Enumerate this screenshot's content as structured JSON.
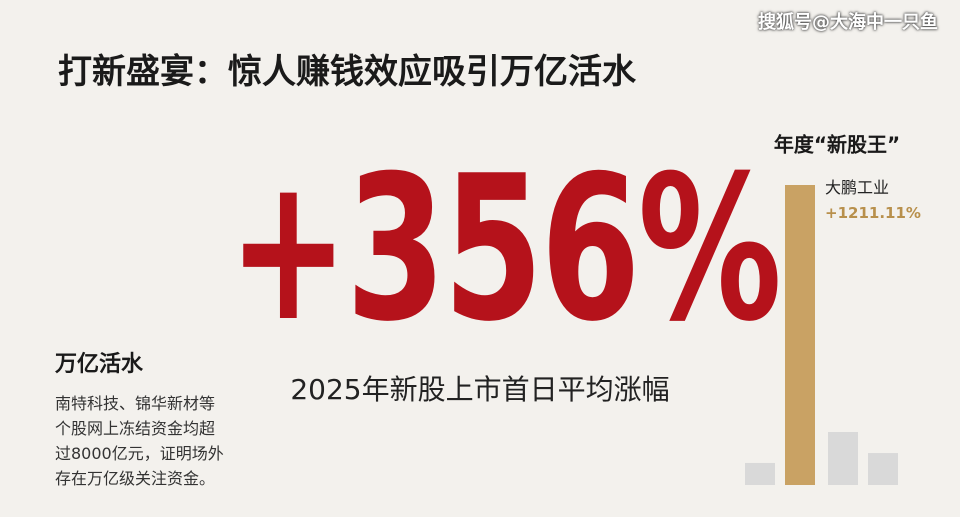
{
  "header": {
    "watermark": "搜狐号@大海中一只鱼",
    "title": "打新盛宴：惊人赚钱效应吸引万亿活水"
  },
  "headline": {
    "value": "+356%",
    "caption": "2025年新股上市首日平均涨幅"
  },
  "side": {
    "title": "万亿活水",
    "lines": [
      "南特科技、锦华新材等",
      "个股网上冻结资金均超",
      "过8000亿元，证明场外",
      "存在万亿级关注资金。"
    ]
  },
  "chart_data": {
    "type": "bar",
    "title": "年度“新股王”",
    "categories": [
      null,
      "大鹏工业",
      null,
      null
    ],
    "values": [
      89,
      1211.11,
      214,
      129
    ],
    "value_labels": [
      null,
      "+1211.11%",
      null,
      null
    ],
    "colors": [
      "#d9d9d9",
      "#c9a264",
      "#d9d9d9",
      "#d9d9d9"
    ]
  }
}
